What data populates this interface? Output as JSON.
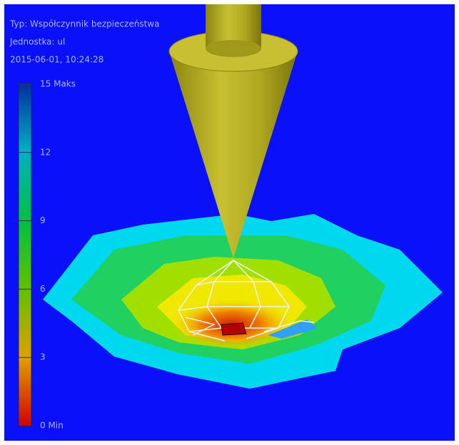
{
  "header": {
    "type_line": "Typ: Współczynnik bezpieczeństwa",
    "unit_line": "Jednostka: ul",
    "date_line": "2015-06-01, 10:24:28"
  },
  "legend": {
    "labels": [
      "15 Maks",
      "12",
      "9",
      "6",
      "3",
      "0 Min"
    ]
  }
}
